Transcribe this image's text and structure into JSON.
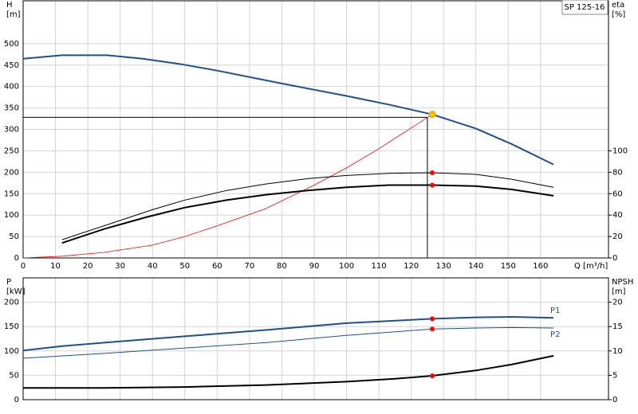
{
  "chart_data": [
    {
      "type": "line",
      "title": "SP 125-16",
      "ylabel": "H",
      "yunit": "[m]",
      "y2label": "eta",
      "y2unit": "[%]",
      "xlabel": "Q [m³/h]",
      "xlim": [
        0,
        181
      ],
      "xticks": [
        0,
        10,
        20,
        30,
        40,
        50,
        60,
        70,
        80,
        90,
        100,
        110,
        120,
        130,
        140,
        150,
        160
      ],
      "ylim": [
        0,
        600
      ],
      "yticks": [
        0,
        50,
        100,
        150,
        200,
        250,
        300,
        350,
        400,
        450,
        500
      ],
      "y2lim": [
        0,
        240
      ],
      "y2ticks": [
        0,
        20,
        40,
        60,
        80,
        100
      ],
      "grid": true,
      "series": [
        {
          "color": "#1f4e96",
          "line_width": 2,
          "x": [
            0,
            12,
            26,
            37,
            49,
            60,
            80,
            100,
            113,
            126.5,
            140,
            151,
            164
          ],
          "values": [
            465,
            473,
            473,
            465,
            452,
            437,
            407,
            378,
            358,
            335,
            302,
            266,
            218
          ]
        },
        {
          "color": "#ff0000",
          "line_width": 0.8,
          "x": [
            0,
            12,
            25,
            40,
            50,
            60,
            75,
            90,
            100,
            110,
            126.5
          ],
          "values": [
            0,
            4,
            13,
            30,
            50,
            75,
            115,
            170,
            210,
            255,
            335
          ]
        },
        {
          "color": "#000000",
          "line_width": 1,
          "axis": "y2",
          "x": [
            12,
            25,
            40,
            50,
            63,
            75,
            88,
            100,
            113,
            126.5,
            140,
            151,
            164
          ],
          "values": [
            17,
            30,
            45,
            54,
            63,
            69,
            74,
            77,
            79,
            79.5,
            78,
            73.5,
            66
          ]
        },
        {
          "color": "#000000",
          "line_width": 2,
          "axis": "y2",
          "x": [
            12,
            25,
            38,
            50,
            63,
            75,
            88,
            100,
            113,
            126.5,
            140,
            151,
            164
          ],
          "values": [
            14,
            27,
            38,
            47,
            54,
            59,
            63,
            66,
            68,
            68,
            67,
            64,
            58
          ]
        }
      ],
      "operating_point": {
        "q": 125,
        "h": 328
      },
      "markers": [
        {
          "x": 126.5,
          "y": 335,
          "color": "#ffc000"
        },
        {
          "x": 126.5,
          "y": 79.5,
          "axis": "y2",
          "color": "#ff0000"
        },
        {
          "x": 126.5,
          "y": 68,
          "axis": "y2",
          "color": "#ff0000"
        }
      ]
    },
    {
      "type": "line",
      "ylabel": "P",
      "yunit": "[kW]",
      "y2label": "NPSH",
      "y2unit": "[m]",
      "xlim": [
        0,
        181
      ],
      "ylim": [
        0,
        250
      ],
      "yticks": [
        0,
        50,
        100,
        150,
        200
      ],
      "y2lim": [
        0,
        25
      ],
      "y2ticks": [
        0,
        5,
        10,
        15,
        20
      ],
      "grid": true,
      "series": [
        {
          "name": "P1",
          "label_position": "above",
          "color": "#1f4e96",
          "line_width": 2,
          "x": [
            0,
            12,
            25,
            50,
            75,
            100,
            126.5,
            140,
            151,
            164
          ],
          "values": [
            101,
            110,
            117,
            130,
            143,
            157,
            166,
            169,
            170,
            168
          ]
        },
        {
          "name": "P2",
          "label_position": "below",
          "color": "#1f4e96",
          "line_width": 1,
          "x": [
            0,
            25,
            50,
            75,
            100,
            126.5,
            140,
            151,
            164
          ],
          "values": [
            85,
            95,
            106,
            117,
            132,
            145,
            147,
            148,
            147
          ]
        },
        {
          "color": "#000000",
          "line_width": 2,
          "axis": "y2",
          "x": [
            0,
            25,
            50,
            75,
            100,
            115,
            126.5,
            140,
            151,
            164
          ],
          "values": [
            2.4,
            2.4,
            2.6,
            3.0,
            3.7,
            4.3,
            4.9,
            6.0,
            7.2,
            9.0
          ]
        }
      ],
      "markers": [
        {
          "x": 126.5,
          "y": 166,
          "color": "#ff0000"
        },
        {
          "x": 126.5,
          "y": 145,
          "color": "#ff0000"
        },
        {
          "x": 126.5,
          "y": 4.9,
          "axis": "y2",
          "color": "#ff0000"
        }
      ]
    }
  ]
}
